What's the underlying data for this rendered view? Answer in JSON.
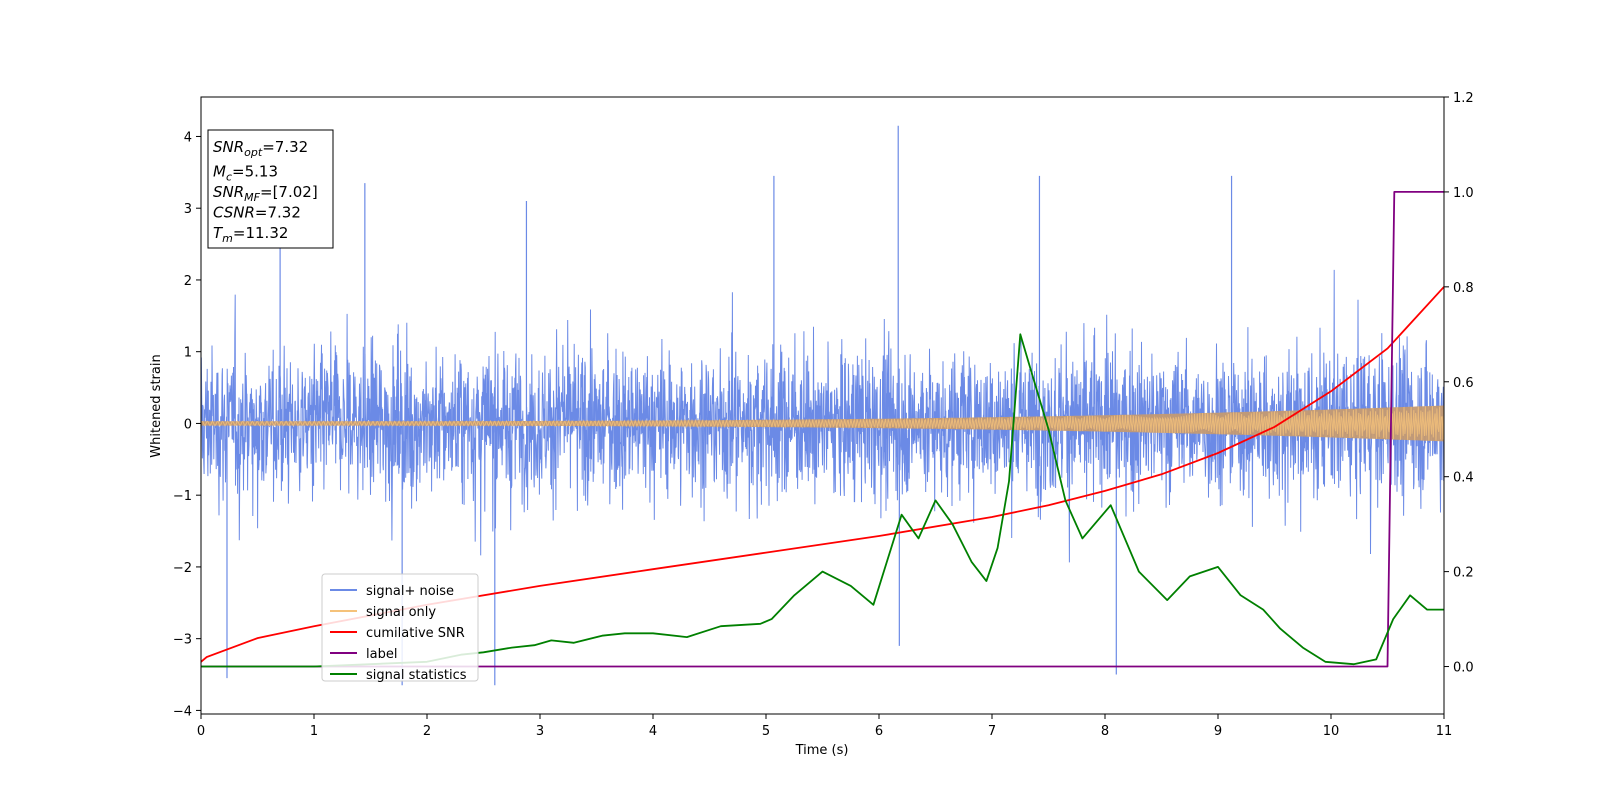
{
  "chart_data": {
    "type": "line",
    "xlabel": "Time (s)",
    "ylabel": "Whitened strain",
    "xlim": [
      0,
      11
    ],
    "ylim_left": [
      -4.05,
      4.55
    ],
    "ylim_right": [
      -0.1,
      1.2
    ],
    "x_ticks": [
      0,
      1,
      2,
      3,
      4,
      5,
      6,
      7,
      8,
      9,
      10,
      11
    ],
    "y_ticks_left": [
      -4,
      -3,
      -2,
      -1,
      0,
      1,
      2,
      3,
      4
    ],
    "y_ticks_right": [
      0.0,
      0.2,
      0.4,
      0.6,
      0.8,
      1.0,
      1.2
    ],
    "legend_position": "lower-left",
    "annotation": [
      {
        "base": "SNR",
        "sub": "opt",
        "rest": "=7.32"
      },
      {
        "base": "M",
        "sub": "c",
        "rest": "=5.13"
      },
      {
        "base": "SNR",
        "sub": "MF",
        "rest": "=[7.02]"
      },
      {
        "base": "CSNR",
        "sub": "",
        "rest": "=7.32"
      },
      {
        "base": "T",
        "sub": "m",
        "rest": "=11.32"
      }
    ],
    "series": [
      {
        "name": "signal+ noise",
        "axis": "left",
        "color": "#6b8ae6",
        "kind": "noise",
        "envelope_low": -2.4,
        "envelope_high": 2.4,
        "spike_peaks": [
          {
            "x": 0.23,
            "y": -3.55
          },
          {
            "x": 0.7,
            "y": 2.9
          },
          {
            "x": 1.45,
            "y": 3.35
          },
          {
            "x": 1.78,
            "y": -3.65
          },
          {
            "x": 2.6,
            "y": -3.65
          },
          {
            "x": 2.88,
            "y": 3.1
          },
          {
            "x": 5.07,
            "y": 3.45
          },
          {
            "x": 6.17,
            "y": 4.15
          },
          {
            "x": 6.18,
            "y": -3.1
          },
          {
            "x": 7.42,
            "y": 3.45
          },
          {
            "x": 8.1,
            "y": -3.5
          },
          {
            "x": 9.12,
            "y": 3.45
          }
        ]
      },
      {
        "name": "signal only",
        "axis": "left",
        "color": "#f5c27a",
        "kind": "chirp",
        "amplitude_start": 0.03,
        "amplitude_end": 0.25
      },
      {
        "name": "cumilative SNR",
        "axis": "right",
        "color": "#ff0000",
        "x": [
          0,
          0.05,
          0.5,
          1,
          2,
          3,
          4,
          5,
          6,
          7,
          7.5,
          8,
          8.5,
          9,
          9.5,
          10,
          10.5,
          11
        ],
        "y": [
          0.01,
          0.02,
          0.06,
          0.085,
          0.13,
          0.17,
          0.205,
          0.24,
          0.275,
          0.315,
          0.34,
          0.37,
          0.405,
          0.45,
          0.505,
          0.58,
          0.67,
          0.8
        ]
      },
      {
        "name": "label",
        "axis": "right",
        "color": "#800080",
        "x": [
          0,
          10.5,
          10.56,
          11
        ],
        "y": [
          0,
          0,
          1,
          1
        ]
      },
      {
        "name": "signal statistics",
        "axis": "right",
        "color": "#008000",
        "x": [
          0,
          1.0,
          2.0,
          2.3,
          2.5,
          2.75,
          2.95,
          3.1,
          3.3,
          3.55,
          3.75,
          4.0,
          4.3,
          4.6,
          4.95,
          5.05,
          5.25,
          5.5,
          5.75,
          5.95,
          6.2,
          6.35,
          6.5,
          6.65,
          6.82,
          6.95,
          7.05,
          7.15,
          7.25,
          7.35,
          7.5,
          7.65,
          7.8,
          8.05,
          8.3,
          8.55,
          8.75,
          9.0,
          9.2,
          9.4,
          9.55,
          9.75,
          9.95,
          10.2,
          10.4,
          10.55,
          10.7,
          10.85,
          11.0
        ],
        "y": [
          0.0,
          0.0,
          0.01,
          0.025,
          0.03,
          0.04,
          0.045,
          0.055,
          0.05,
          0.065,
          0.07,
          0.07,
          0.062,
          0.085,
          0.09,
          0.1,
          0.15,
          0.2,
          0.17,
          0.13,
          0.32,
          0.27,
          0.35,
          0.3,
          0.22,
          0.18,
          0.25,
          0.39,
          0.7,
          0.62,
          0.5,
          0.35,
          0.27,
          0.34,
          0.2,
          0.14,
          0.19,
          0.21,
          0.15,
          0.12,
          0.08,
          0.04,
          0.01,
          0.005,
          0.015,
          0.1,
          0.15,
          0.12,
          0.12
        ]
      }
    ]
  }
}
